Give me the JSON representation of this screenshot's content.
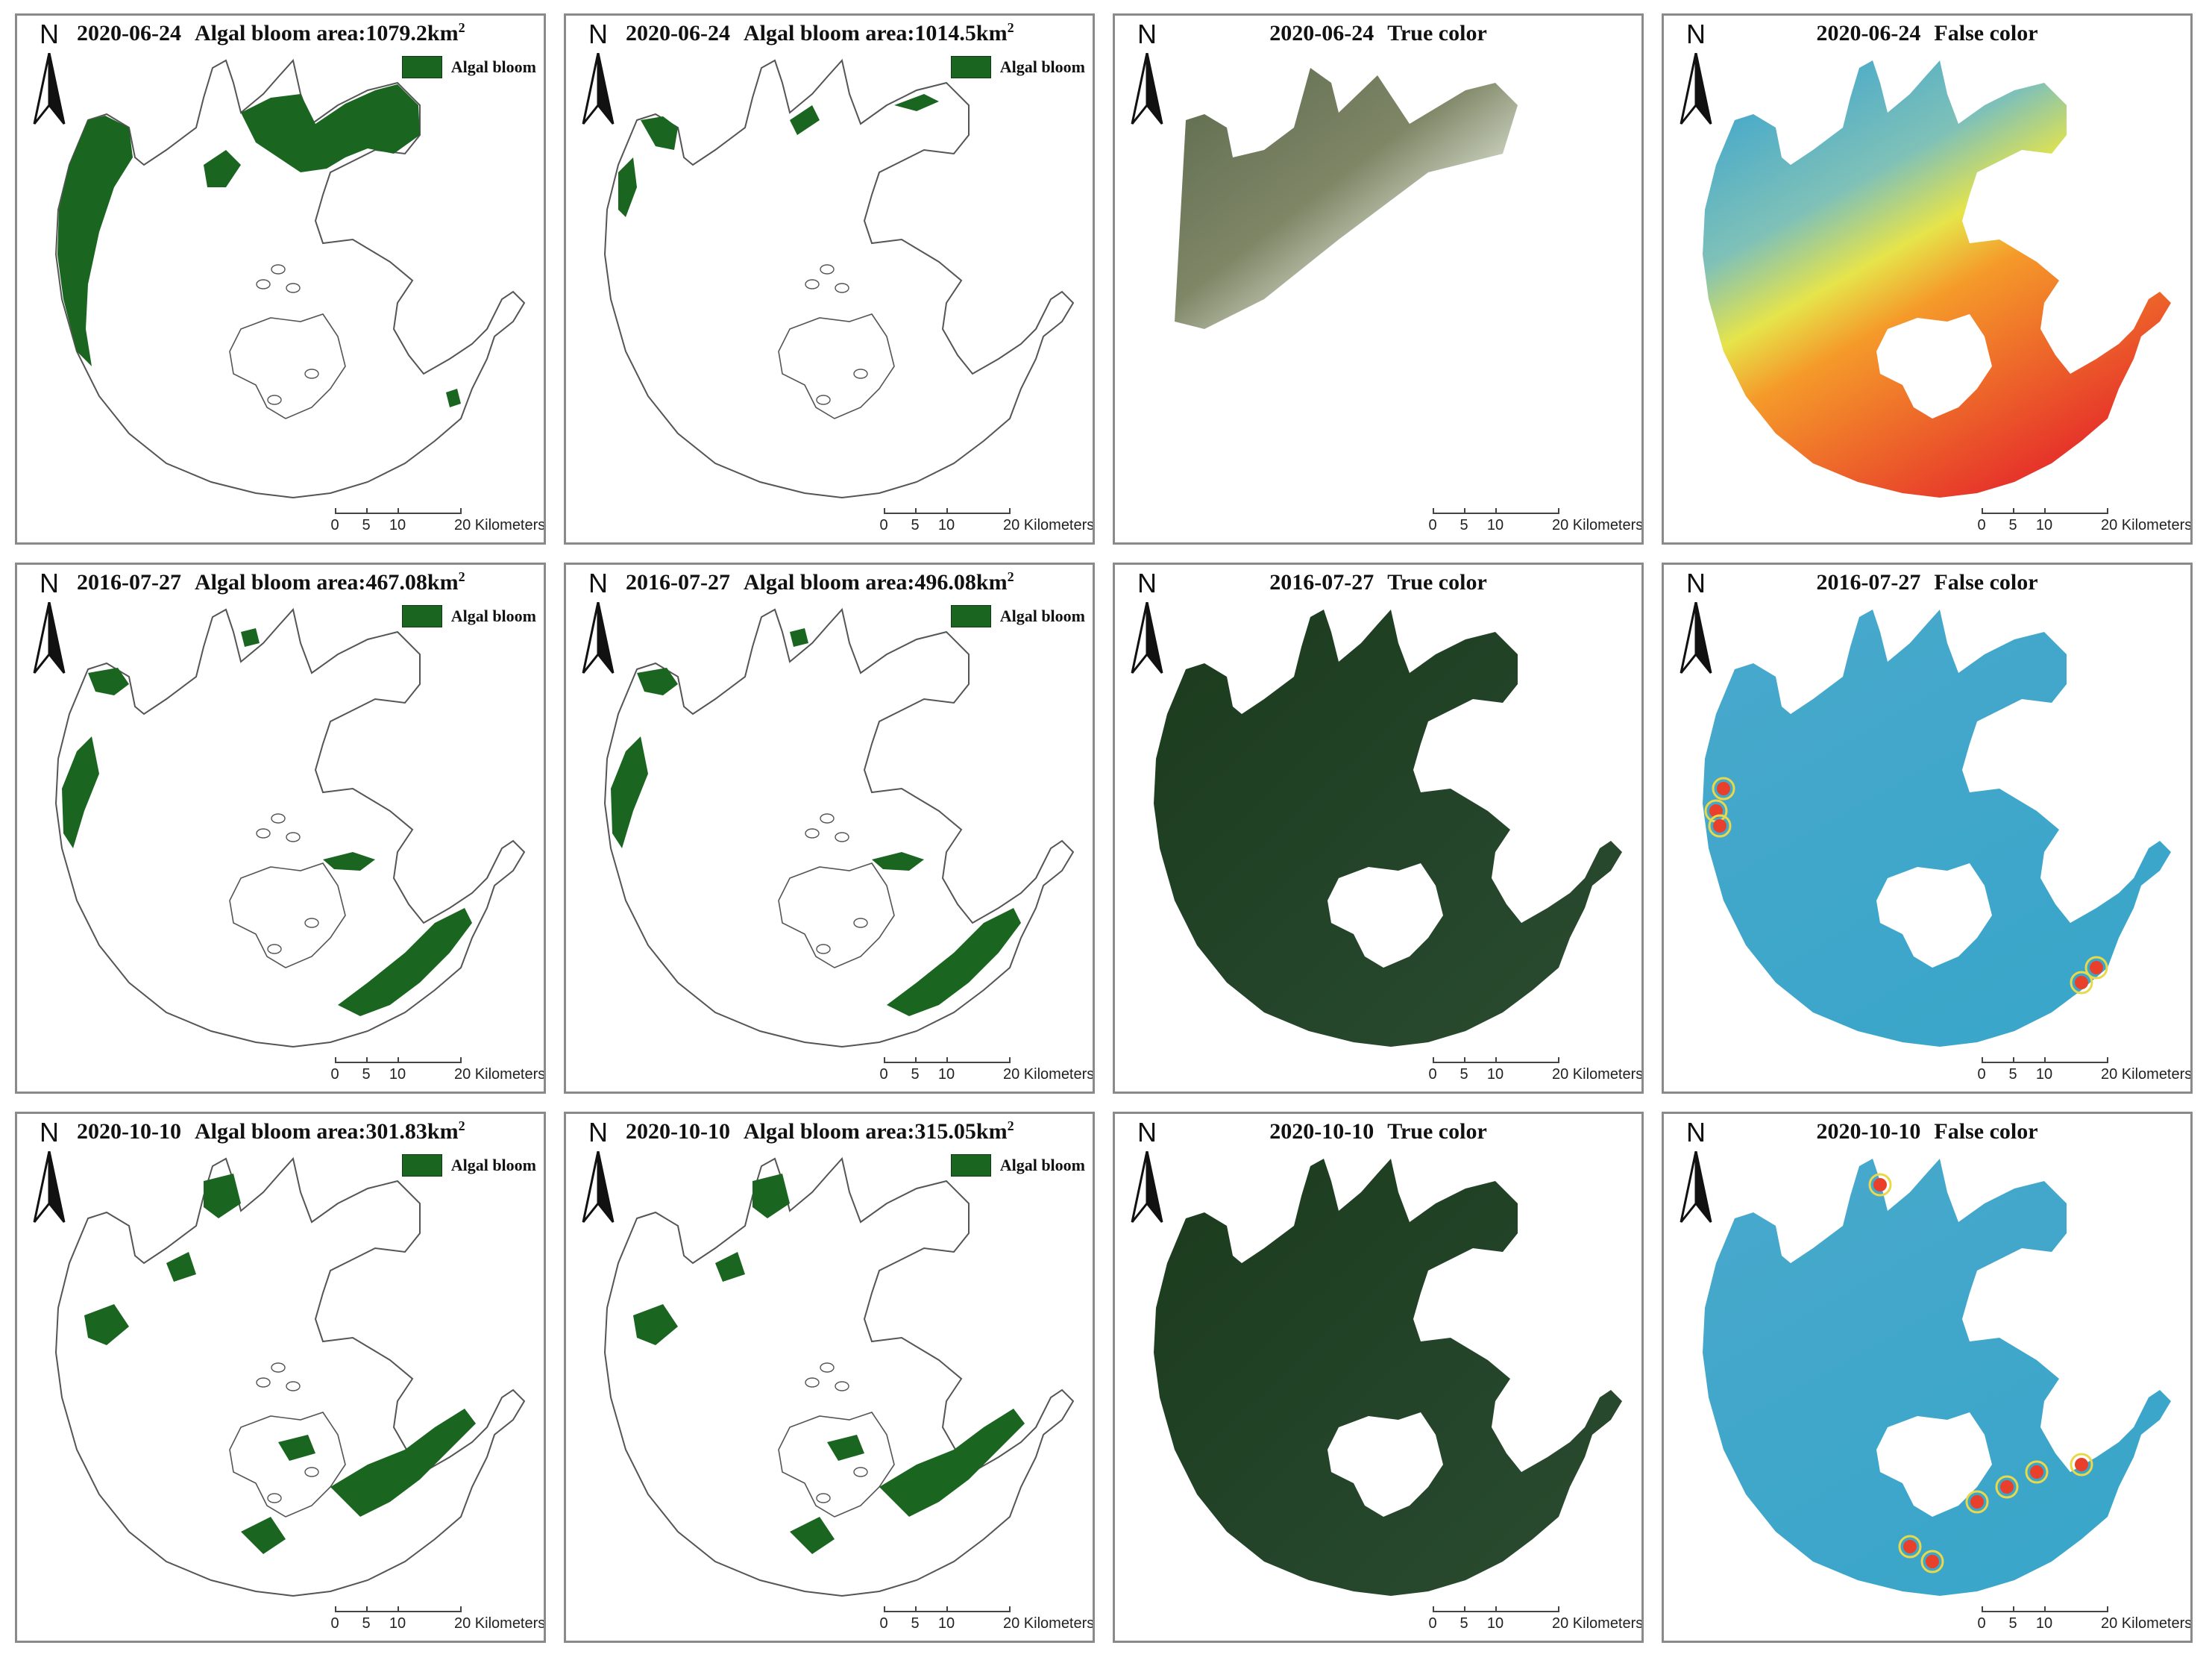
{
  "figure": {
    "panels": [
      {
        "title_date": "2020-06-24",
        "title_text": "Algal bloom area:",
        "area_value": "1079.2",
        "area_unit": "km",
        "area_exp": "2",
        "type": "bloom",
        "legend": "Algal bloom"
      },
      {
        "title_date": "2020-06-24",
        "title_text": "Algal bloom area:",
        "area_value": "1014.5",
        "area_unit": "km",
        "area_exp": "2",
        "type": "bloom",
        "legend": "Algal bloom"
      },
      {
        "title_date": "2020-06-24",
        "title_text": "True color",
        "type": "true"
      },
      {
        "title_date": "2020-06-24",
        "title_text": "False color",
        "type": "false"
      },
      {
        "title_date": "2016-07-27",
        "title_text": "Algal bloom area:",
        "area_value": "467.08",
        "area_unit": "km",
        "area_exp": "2",
        "type": "bloom",
        "legend": "Algal bloom"
      },
      {
        "title_date": "2016-07-27",
        "title_text": "Algal bloom area:",
        "area_value": "496.08",
        "area_unit": "km",
        "area_exp": "2",
        "type": "bloom",
        "legend": "Algal bloom"
      },
      {
        "title_date": "2016-07-27",
        "title_text": "True color",
        "type": "true"
      },
      {
        "title_date": "2016-07-27",
        "title_text": "False color",
        "type": "false"
      },
      {
        "title_date": "2020-10-10",
        "title_text": "Algal bloom area:",
        "area_value": "301.83",
        "area_unit": "km",
        "area_exp": "2",
        "type": "bloom",
        "legend": "Algal bloom"
      },
      {
        "title_date": "2020-10-10",
        "title_text": "Algal bloom area:",
        "area_value": "315.05",
        "area_unit": "km",
        "area_exp": "2",
        "type": "bloom",
        "legend": "Algal bloom"
      },
      {
        "title_date": "2020-10-10",
        "title_text": "True color",
        "type": "true"
      },
      {
        "title_date": "2020-10-10",
        "title_text": "False color",
        "type": "false"
      }
    ],
    "north_label": "N",
    "scale": {
      "ticks": [
        "0",
        "5",
        "10",
        "20"
      ],
      "unit": "Kilometers"
    },
    "colors": {
      "bloom": "#1a6620",
      "outline": "#555555",
      "true_color_2020_06": "#8a8f78",
      "true_color_dark": "#1f3a1f",
      "false_color_blue": "#3aa6c9",
      "false_color_red": "#e8402a"
    }
  }
}
